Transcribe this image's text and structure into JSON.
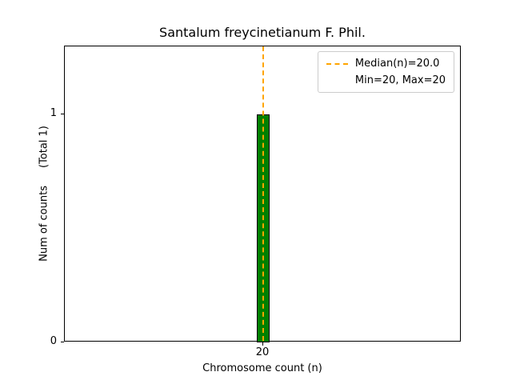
{
  "chart_data": {
    "type": "bar",
    "title": "Santalum freycinetianum F. Phil.",
    "xlabel": "Chromosome count (n)",
    "ylabel": "Num of counts",
    "ylabel_annotation": "(Total 1)",
    "categories": [
      20
    ],
    "values": [
      1
    ],
    "bar_width_data": 0.16,
    "xlim": [
      17.5,
      22.5
    ],
    "ylim": [
      0,
      1.3
    ],
    "x_ticks": [
      {
        "label": "20",
        "value": 20
      }
    ],
    "y_ticks": [
      {
        "label": "0",
        "value": 0
      },
      {
        "label": "1",
        "value": 1
      }
    ],
    "median": 20.0,
    "min": 20,
    "max": 20,
    "grid": false,
    "legend": {
      "position": "upper right",
      "entries": [
        {
          "label": "Median(n)=20.0",
          "swatch": "orange-dashed-line"
        },
        {
          "label": "Min=20, Max=20",
          "swatch": "none"
        }
      ]
    },
    "colors": {
      "bar_fill": "#008000",
      "bar_edge": "#000000",
      "median_line": "#FFA500",
      "axis": "#000000",
      "legend_border": "#cccccc"
    }
  }
}
